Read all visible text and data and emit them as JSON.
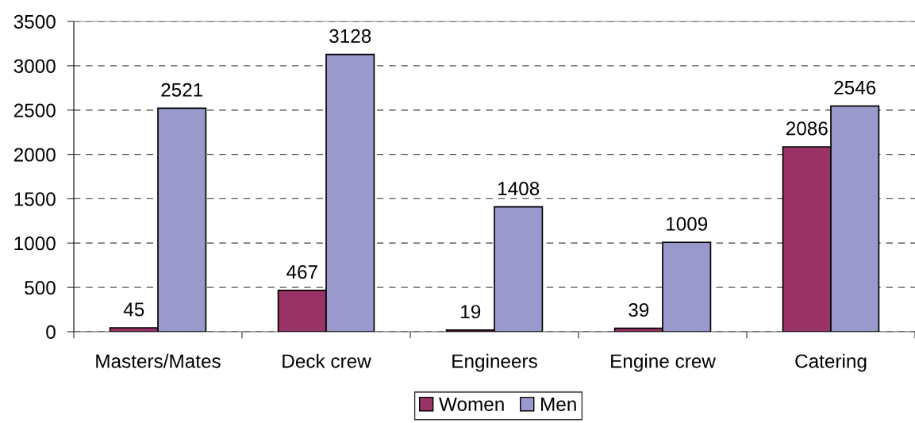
{
  "chart_data": {
    "type": "bar",
    "categories": [
      "Masters/Mates",
      "Deck crew",
      "Engineers",
      "Engine crew",
      "Catering"
    ],
    "series": [
      {
        "name": "Women",
        "color": "#993366",
        "values": [
          45,
          467,
          19,
          39,
          2086
        ]
      },
      {
        "name": "Men",
        "color": "#9999cc",
        "values": [
          2521,
          3128,
          1408,
          1009,
          2546
        ]
      }
    ],
    "ylim": [
      0,
      3500
    ],
    "yticks": [
      0,
      500,
      1000,
      1500,
      2000,
      2500,
      3000,
      3500
    ],
    "grid": "y",
    "legend": "bottom",
    "data_labels": true
  }
}
